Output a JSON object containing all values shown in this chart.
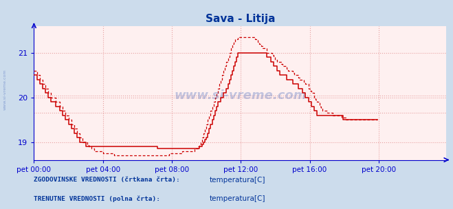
{
  "title": "Sava - Litija",
  "title_color": "#003399",
  "bg_color": "#ccdcec",
  "plot_bg_color": "#fef0f0",
  "grid_color": "#e8a0a0",
  "axis_color": "#0000cc",
  "text_color": "#003399",
  "xlim": [
    0,
    287
  ],
  "ylim": [
    18.6,
    21.6
  ],
  "yticks": [
    19,
    20,
    21
  ],
  "xtick_labels": [
    "pet 00:00",
    "pet 04:00",
    "pet 08:00",
    "pet 12:00",
    "pet 16:00",
    "pet 20:00"
  ],
  "xtick_positions": [
    0,
    48,
    96,
    144,
    192,
    240
  ],
  "hlines_dotted": [
    19.65,
    20.05
  ],
  "watermark": "www.si-vreme.com",
  "legend_label1": "ZGODOVINSKE VREDNOSTI (črtkana črta):",
  "legend_label2": "TRENUTNE VREDNOSTI (polna črta):",
  "legend_item": "temperatura[C]",
  "line_color": "#cc0000",
  "current_temp": [
    20.5,
    20.5,
    20.4,
    20.4,
    20.3,
    20.3,
    20.2,
    20.2,
    20.1,
    20.1,
    20.0,
    20.0,
    19.9,
    19.9,
    19.9,
    19.8,
    19.8,
    19.8,
    19.7,
    19.7,
    19.6,
    19.6,
    19.5,
    19.5,
    19.4,
    19.4,
    19.3,
    19.3,
    19.2,
    19.2,
    19.1,
    19.1,
    19.0,
    19.0,
    19.0,
    19.0,
    18.9,
    18.9,
    18.9,
    18.9,
    18.9,
    18.9,
    18.9,
    18.9,
    18.9,
    18.9,
    18.9,
    18.9,
    18.9,
    18.9,
    18.9,
    18.9,
    18.9,
    18.9,
    18.9,
    18.9,
    18.9,
    18.9,
    18.9,
    18.9,
    18.9,
    18.9,
    18.9,
    18.9,
    18.9,
    18.9,
    18.9,
    18.9,
    18.9,
    18.9,
    18.9,
    18.9,
    18.9,
    18.9,
    18.9,
    18.9,
    18.9,
    18.9,
    18.9,
    18.9,
    18.9,
    18.9,
    18.9,
    18.9,
    18.9,
    18.9,
    18.85,
    18.85,
    18.85,
    18.85,
    18.85,
    18.85,
    18.85,
    18.85,
    18.85,
    18.85,
    18.85,
    18.85,
    18.85,
    18.85,
    18.85,
    18.85,
    18.85,
    18.85,
    18.85,
    18.85,
    18.85,
    18.85,
    18.85,
    18.85,
    18.85,
    18.85,
    18.85,
    18.85,
    18.85,
    18.9,
    18.9,
    18.95,
    19.0,
    19.05,
    19.1,
    19.2,
    19.3,
    19.4,
    19.5,
    19.6,
    19.7,
    19.8,
    19.9,
    19.9,
    20.0,
    20.0,
    20.1,
    20.1,
    20.2,
    20.3,
    20.4,
    20.5,
    20.6,
    20.7,
    20.8,
    20.9,
    21.0,
    21.0,
    21.0,
    21.0,
    21.0,
    21.0,
    21.0,
    21.0,
    21.0,
    21.0,
    21.0,
    21.0,
    21.0,
    21.0,
    21.0,
    21.0,
    21.0,
    21.0,
    21.0,
    21.0,
    20.9,
    20.9,
    20.9,
    20.8,
    20.8,
    20.7,
    20.7,
    20.6,
    20.6,
    20.5,
    20.5,
    20.5,
    20.5,
    20.5,
    20.4,
    20.4,
    20.4,
    20.4,
    20.3,
    20.3,
    20.3,
    20.3,
    20.2,
    20.2,
    20.2,
    20.1,
    20.1,
    20.0,
    20.0,
    19.9,
    19.9,
    19.8,
    19.8,
    19.7,
    19.7,
    19.6,
    19.6,
    19.6,
    19.6,
    19.6,
    19.6,
    19.6,
    19.6,
    19.6,
    19.6,
    19.6,
    19.6,
    19.6,
    19.6,
    19.6,
    19.6,
    19.6,
    19.6,
    19.5,
    19.5,
    19.5,
    19.5,
    19.5,
    19.5,
    19.5,
    19.5,
    19.5,
    19.5,
    19.5,
    19.5,
    19.5,
    19.5,
    19.5,
    19.5,
    19.5,
    19.5,
    19.5,
    19.5,
    19.5,
    19.5,
    19.5,
    19.5,
    19.5
  ],
  "hist_temp": [
    20.6,
    20.6,
    20.5,
    20.5,
    20.4,
    20.4,
    20.3,
    20.3,
    20.2,
    20.2,
    20.1,
    20.1,
    20.0,
    20.0,
    20.0,
    19.9,
    19.9,
    19.9,
    19.8,
    19.8,
    19.7,
    19.7,
    19.6,
    19.6,
    19.5,
    19.5,
    19.4,
    19.4,
    19.3,
    19.3,
    19.2,
    19.2,
    19.1,
    19.1,
    19.0,
    19.0,
    19.0,
    18.95,
    18.9,
    18.9,
    18.85,
    18.85,
    18.8,
    18.8,
    18.8,
    18.8,
    18.8,
    18.8,
    18.75,
    18.75,
    18.75,
    18.75,
    18.75,
    18.75,
    18.75,
    18.75,
    18.7,
    18.7,
    18.7,
    18.7,
    18.7,
    18.7,
    18.7,
    18.7,
    18.7,
    18.7,
    18.7,
    18.7,
    18.7,
    18.7,
    18.7,
    18.7,
    18.7,
    18.7,
    18.7,
    18.7,
    18.7,
    18.7,
    18.7,
    18.7,
    18.7,
    18.7,
    18.7,
    18.7,
    18.7,
    18.7,
    18.7,
    18.7,
    18.7,
    18.7,
    18.7,
    18.7,
    18.7,
    18.7,
    18.75,
    18.75,
    18.75,
    18.75,
    18.75,
    18.75,
    18.75,
    18.75,
    18.75,
    18.8,
    18.8,
    18.8,
    18.8,
    18.8,
    18.8,
    18.8,
    18.8,
    18.8,
    18.85,
    18.85,
    18.9,
    18.95,
    19.0,
    19.1,
    19.2,
    19.3,
    19.4,
    19.5,
    19.6,
    19.7,
    19.8,
    19.9,
    20.0,
    20.1,
    20.2,
    20.3,
    20.4,
    20.5,
    20.6,
    20.7,
    20.8,
    20.9,
    21.0,
    21.1,
    21.2,
    21.25,
    21.3,
    21.3,
    21.35,
    21.35,
    21.35,
    21.35,
    21.35,
    21.35,
    21.35,
    21.35,
    21.35,
    21.35,
    21.35,
    21.35,
    21.3,
    21.3,
    21.25,
    21.2,
    21.15,
    21.1,
    21.1,
    21.1,
    21.0,
    21.0,
    21.0,
    21.0,
    20.95,
    20.9,
    20.85,
    20.8,
    20.8,
    20.8,
    20.75,
    20.7,
    20.7,
    20.7,
    20.65,
    20.6,
    20.6,
    20.6,
    20.55,
    20.5,
    20.5,
    20.5,
    20.45,
    20.4,
    20.4,
    20.4,
    20.35,
    20.3,
    20.3,
    20.2,
    20.15,
    20.1,
    20.1,
    20.0,
    19.95,
    19.9,
    19.9,
    19.8,
    19.75,
    19.7,
    19.7,
    19.7,
    19.65,
    19.65,
    19.65,
    19.65,
    19.6,
    19.6,
    19.6,
    19.6,
    19.6,
    19.6,
    19.55,
    19.55,
    19.55,
    19.5,
    19.5,
    19.5,
    19.5,
    19.5,
    19.5,
    19.5,
    19.5,
    19.5,
    19.5,
    19.5,
    19.5,
    19.5,
    19.5,
    19.5,
    19.5,
    19.5,
    19.5,
    19.5,
    19.5,
    19.5,
    19.5,
    19.5
  ]
}
